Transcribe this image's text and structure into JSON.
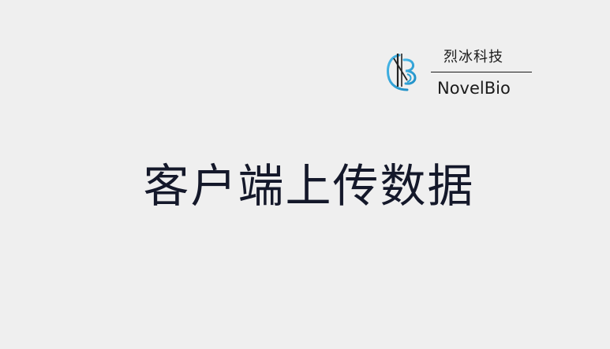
{
  "logo": {
    "icon": "novelbio-logo-icon",
    "chinese_name": "烈冰科技",
    "english_name": "NovelBio",
    "accent_color": "#2aa3d6"
  },
  "title": {
    "text": "客户端上传数据"
  },
  "colors": {
    "background": "#efefef",
    "text": "#14182a"
  }
}
